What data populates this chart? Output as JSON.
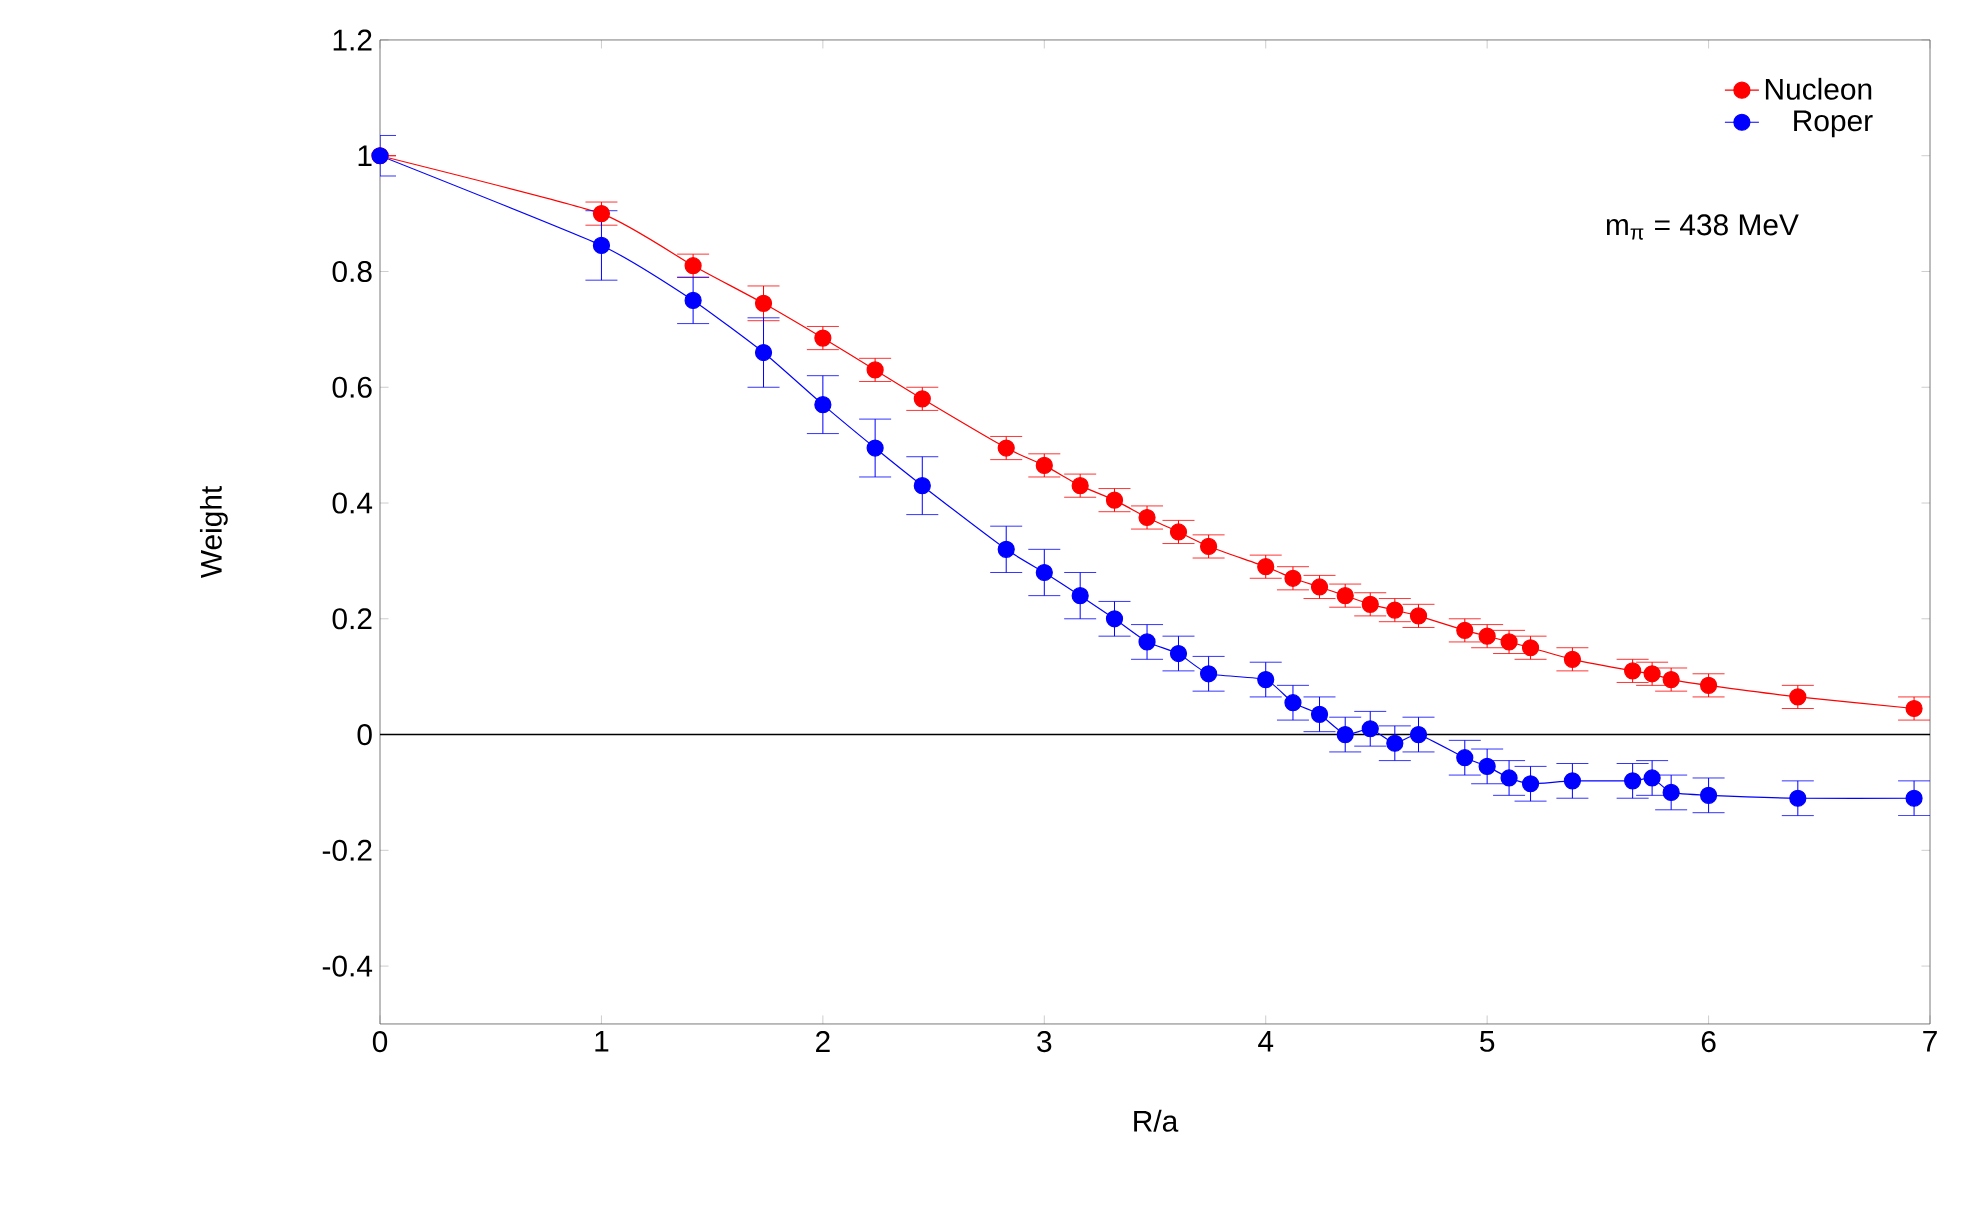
{
  "chart_data": {
    "type": "line",
    "xlabel": "R/a",
    "ylabel": "Weight",
    "x": [
      0,
      1,
      1.414,
      1.732,
      2,
      2.236,
      2.449,
      2.828,
      3,
      3.162,
      3.317,
      3.464,
      3.606,
      3.742,
      4,
      4.123,
      4.243,
      4.359,
      4.472,
      4.583,
      4.69,
      4.899,
      5,
      5.099,
      5.196,
      5.385,
      5.657,
      5.745,
      5.831,
      6,
      6.403,
      6.928
    ],
    "series": [
      {
        "name": "Nucleon",
        "color": "#ff0000",
        "values": [
          1.0,
          0.9,
          0.81,
          0.745,
          0.685,
          0.63,
          0.58,
          0.495,
          0.465,
          0.43,
          0.405,
          0.375,
          0.35,
          0.325,
          0.29,
          0.27,
          0.255,
          0.24,
          0.225,
          0.215,
          0.205,
          0.18,
          0.17,
          0.16,
          0.15,
          0.13,
          0.11,
          0.105,
          0.095,
          0.085,
          0.065,
          0.045
        ],
        "errors": [
          null,
          0.02,
          0.02,
          0.03,
          0.02,
          0.02,
          0.02,
          0.02,
          0.02,
          0.02,
          0.02,
          0.02,
          0.02,
          0.02,
          0.02,
          0.02,
          0.02,
          0.02,
          0.02,
          0.02,
          0.02,
          0.02,
          0.02,
          0.02,
          0.02,
          0.02,
          0.02,
          0.02,
          0.02,
          0.02,
          0.02,
          0.02
        ]
      },
      {
        "name": "Roper",
        "color": "#0000ff",
        "values": [
          1.0,
          0.845,
          0.75,
          0.66,
          0.57,
          0.495,
          0.43,
          0.32,
          0.28,
          0.24,
          0.2,
          0.16,
          0.14,
          0.105,
          0.095,
          0.055,
          0.035,
          0.0,
          0.01,
          -0.015,
          0.0,
          -0.04,
          -0.055,
          -0.075,
          -0.085,
          -0.08,
          -0.08,
          -0.075,
          -0.1,
          -0.105,
          -0.11,
          -0.11
        ],
        "errors": [
          0.035,
          0.06,
          0.04,
          0.06,
          0.05,
          0.05,
          0.05,
          0.04,
          0.04,
          0.04,
          0.03,
          0.03,
          0.03,
          0.03,
          0.03,
          0.03,
          0.03,
          0.03,
          0.03,
          0.03,
          0.03,
          0.03,
          0.03,
          0.03,
          0.03,
          0.03,
          0.03,
          0.03,
          0.03,
          0.03,
          0.03,
          0.03
        ]
      }
    ],
    "xlim": [
      0,
      7
    ],
    "xticks": [
      0,
      1,
      2,
      3,
      4,
      5,
      6,
      7
    ],
    "ylim": [
      -0.5,
      1.2
    ],
    "yticks": [
      -0.4,
      -0.2,
      0,
      0.2,
      0.4,
      0.6,
      0.8,
      1,
      1.2
    ],
    "ref_lines": [
      {
        "axis": "y",
        "value": 0,
        "color": "#000000"
      }
    ],
    "annotations": [
      "m$_{π}$ = 438 MeV"
    ],
    "legend": "top right",
    "marker": "circle",
    "grid": false
  }
}
